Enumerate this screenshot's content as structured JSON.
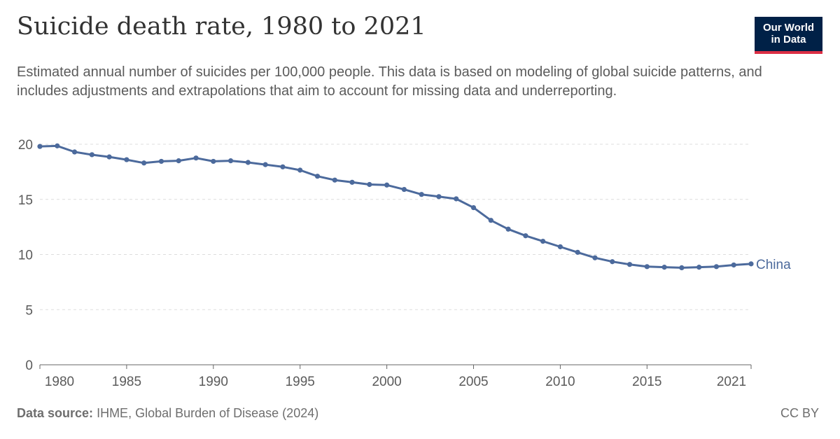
{
  "header": {
    "title": "Suicide death rate, 1980 to 2021",
    "subtitle": "Estimated annual number of suicides per 100,000 people. This data is based on modeling of global suicide patterns, and includes adjustments and extrapolations that aim to account for missing data and underreporting.",
    "logo_line1": "Our World",
    "logo_line2": "in Data"
  },
  "footer": {
    "source_label": "Data source:",
    "source_text": "IHME, Global Burden of Disease (2024)",
    "license": "CC BY"
  },
  "colors": {
    "series": "#4c6a9c",
    "grid": "#dddddd",
    "axis": "#666666"
  },
  "chart_data": {
    "type": "line",
    "xlim": [
      1980,
      2021
    ],
    "ylim": [
      0,
      20
    ],
    "x_ticks": [
      1980,
      1985,
      1990,
      1995,
      2000,
      2005,
      2010,
      2015,
      2021
    ],
    "x_tick_labels": [
      "1980",
      "1985",
      "1990",
      "1995",
      "2000",
      "2005",
      "2010",
      "2015",
      "2021"
    ],
    "y_ticks": [
      0,
      5,
      10,
      15,
      20
    ],
    "y_tick_labels": [
      "0",
      "5",
      "10",
      "15",
      "20"
    ],
    "grid": "horizontal dashed",
    "series": [
      {
        "name": "China",
        "x": [
          1980,
          1981,
          1982,
          1983,
          1984,
          1985,
          1986,
          1987,
          1988,
          1989,
          1990,
          1991,
          1992,
          1993,
          1994,
          1995,
          1996,
          1997,
          1998,
          1999,
          2000,
          2001,
          2002,
          2003,
          2004,
          2005,
          2006,
          2007,
          2008,
          2009,
          2010,
          2011,
          2012,
          2013,
          2014,
          2015,
          2016,
          2017,
          2018,
          2019,
          2020,
          2021
        ],
        "values": [
          19.8,
          19.85,
          19.3,
          19.05,
          18.85,
          18.6,
          18.3,
          18.45,
          18.5,
          18.75,
          18.45,
          18.5,
          18.35,
          18.15,
          17.95,
          17.65,
          17.1,
          16.75,
          16.55,
          16.35,
          16.3,
          15.9,
          15.45,
          15.25,
          15.05,
          14.25,
          13.1,
          12.3,
          11.7,
          11.2,
          10.7,
          10.2,
          9.7,
          9.35,
          9.1,
          8.9,
          8.85,
          8.8,
          8.85,
          8.9,
          9.05,
          9.15
        ]
      }
    ]
  }
}
